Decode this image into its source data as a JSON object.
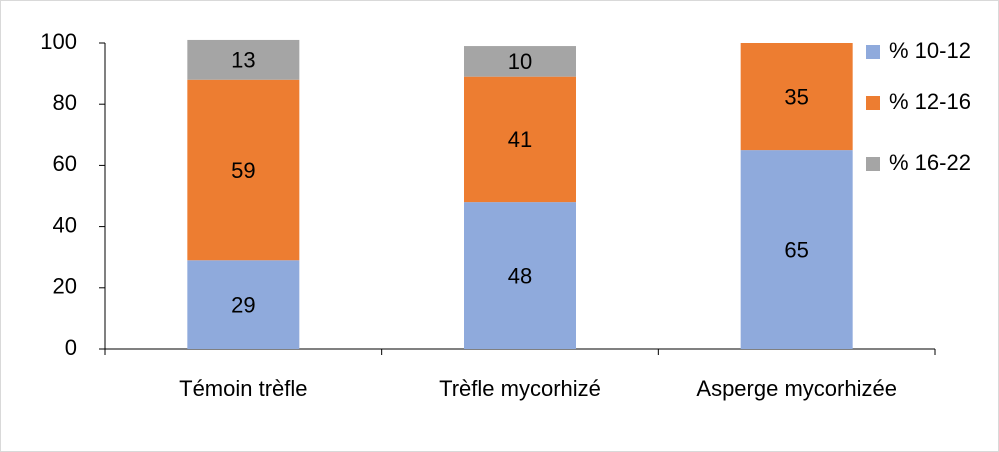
{
  "chart_data": {
    "type": "stacked_bar",
    "categories": [
      "Témoin trèfle",
      "Trèfle mycorhizé",
      "Asperge mycorhizée"
    ],
    "series": [
      {
        "name": "% 10-12",
        "color": "#8faadc",
        "values": [
          29,
          48,
          65
        ]
      },
      {
        "name": "% 12-16",
        "color": "#ed7d31",
        "values": [
          59,
          41,
          35
        ]
      },
      {
        "name": "% 16-22",
        "color": "#a5a5a5",
        "values": [
          13,
          10,
          null
        ]
      }
    ],
    "ylim": [
      0,
      100
    ],
    "yticks": [
      0,
      20,
      40,
      60,
      80,
      100
    ],
    "grid": false,
    "legend": "right"
  }
}
